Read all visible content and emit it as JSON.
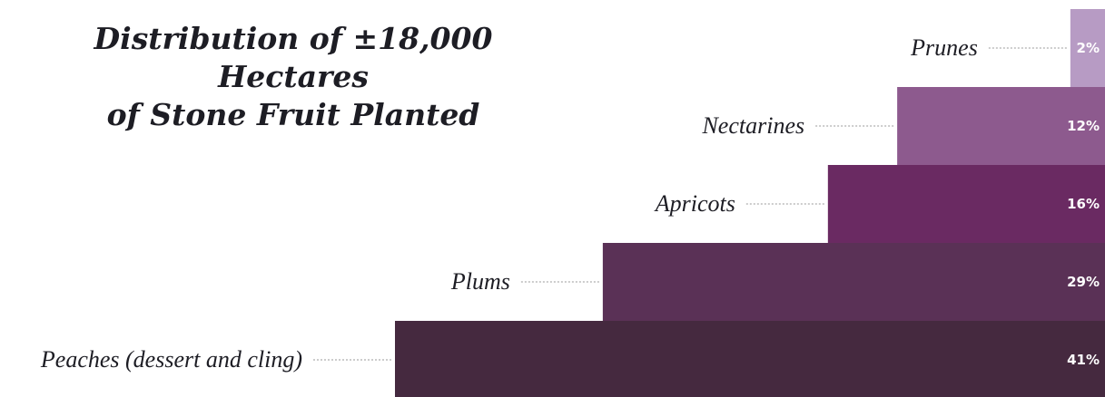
{
  "chart_data": {
    "type": "bar",
    "title_lines": [
      "Distribution of ±18,000 Hectares",
      "of Stone Fruit Planted"
    ],
    "categories": [
      "Prunes",
      "Nectarines",
      "Apricots",
      "Plums",
      "Peaches (dessert and cling)"
    ],
    "values": [
      2,
      12,
      16,
      29,
      41
    ],
    "value_labels": [
      "2%",
      "12%",
      "16%",
      "29%",
      "41%"
    ],
    "unit": "%",
    "orientation": "horizontal-stepped",
    "colors": [
      "#b79bc4",
      "#8d5a8e",
      "#6a2a62",
      "#5a3156",
      "#45293f"
    ]
  }
}
